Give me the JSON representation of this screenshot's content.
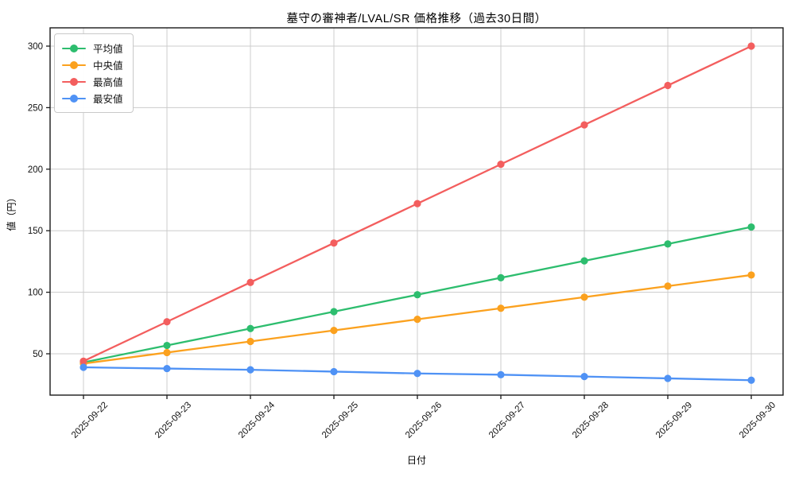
{
  "chart_data": {
    "type": "line",
    "title": "墓守の審神者/LVAL/SR 価格推移（過去30日間）",
    "xlabel": "日付",
    "ylabel": "値（円）",
    "x": [
      "2025-09-22",
      "2025-09-23",
      "2025-09-24",
      "2025-09-25",
      "2025-09-26",
      "2025-09-27",
      "2025-09-28",
      "2025-09-29",
      "2025-09-30"
    ],
    "series": [
      {
        "id": "average",
        "name": "平均値",
        "color": "#2dbd6e",
        "values": [
          43,
          56.75,
          70.5,
          84.25,
          98,
          111.75,
          125.5,
          139.25,
          153
        ]
      },
      {
        "id": "median",
        "name": "中央値",
        "color": "#fba11e",
        "values": [
          42,
          51,
          60,
          69,
          78,
          87,
          96,
          105,
          114
        ]
      },
      {
        "id": "highest",
        "name": "最高値",
        "color": "#f35e5e",
        "values": [
          44,
          76,
          108,
          140,
          172,
          204,
          236,
          268,
          300
        ]
      },
      {
        "id": "lowest",
        "name": "最安値",
        "color": "#4f92f5",
        "values": [
          39,
          38,
          37,
          35.5,
          34,
          33,
          31.5,
          30,
          28.5
        ]
      }
    ],
    "yticks": [
      50,
      100,
      150,
      200,
      250,
      300
    ],
    "ylim": [
      16,
      315
    ],
    "grid": true,
    "legend_position": "upper left",
    "grid_color": "#cccccc",
    "spine_color": "#1a1a1a",
    "tick_label_color": "#111111"
  }
}
